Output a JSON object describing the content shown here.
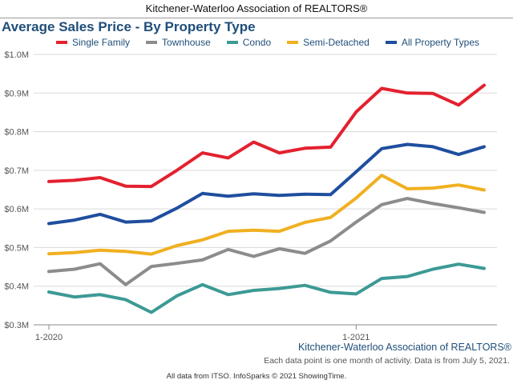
{
  "header": {
    "banner": "Kitchener-Waterloo Association of REALTORS®"
  },
  "chart_data": {
    "type": "line",
    "title": "Average Sales Price - By Property Type",
    "xlabel": "",
    "ylabel": "",
    "x": [
      "2020-01",
      "2020-02",
      "2020-03",
      "2020-04",
      "2020-05",
      "2020-06",
      "2020-07",
      "2020-08",
      "2020-09",
      "2020-10",
      "2020-11",
      "2020-12",
      "2021-01",
      "2021-02",
      "2021-03",
      "2021-04",
      "2021-05",
      "2021-06"
    ],
    "x_tick_labels": [
      {
        "x": "2020-01",
        "label": "1-2020"
      },
      {
        "x": "2021-01",
        "label": "1-2021"
      }
    ],
    "y_ticks": [
      {
        "value": 0.3,
        "label": "$0.3M"
      },
      {
        "value": 0.4,
        "label": "$0.4M"
      },
      {
        "value": 0.5,
        "label": "$0.5M"
      },
      {
        "value": 0.6,
        "label": "$0.6M"
      },
      {
        "value": 0.7,
        "label": "$0.7M"
      },
      {
        "value": 0.8,
        "label": "$0.8M"
      },
      {
        "value": 0.9,
        "label": "$0.9M"
      },
      {
        "value": 1.0,
        "label": "$1.0M"
      }
    ],
    "ylim": [
      0.3,
      1.0
    ],
    "grid": "horizontal",
    "legend_position": "top",
    "series": [
      {
        "name": "Single Family",
        "color": "#e3212f",
        "values": [
          0.671,
          0.674,
          0.681,
          0.659,
          0.658,
          0.7,
          0.745,
          0.732,
          0.773,
          0.745,
          0.757,
          0.76,
          0.851,
          0.912,
          0.9,
          0.899,
          0.869,
          0.92
        ]
      },
      {
        "name": "Townhouse",
        "color": "#8c8c8c",
        "values": [
          0.438,
          0.444,
          0.458,
          0.404,
          0.451,
          0.459,
          0.468,
          0.495,
          0.477,
          0.497,
          0.485,
          0.517,
          0.566,
          0.611,
          0.627,
          0.614,
          0.603,
          0.591
        ]
      },
      {
        "name": "Condo",
        "color": "#3c9a94",
        "values": [
          0.385,
          0.372,
          0.378,
          0.365,
          0.332,
          0.375,
          0.404,
          0.378,
          0.389,
          0.394,
          0.402,
          0.384,
          0.38,
          0.42,
          0.425,
          0.444,
          0.457,
          0.446
        ]
      },
      {
        "name": "Semi-Detached",
        "color": "#f0b020",
        "values": [
          0.484,
          0.487,
          0.493,
          0.49,
          0.483,
          0.505,
          0.52,
          0.542,
          0.545,
          0.542,
          0.565,
          0.578,
          0.628,
          0.687,
          0.652,
          0.654,
          0.662,
          0.649
        ]
      },
      {
        "name": "All Property Types",
        "color": "#1f4e9e",
        "values": [
          0.562,
          0.571,
          0.586,
          0.566,
          0.569,
          0.602,
          0.64,
          0.633,
          0.639,
          0.635,
          0.638,
          0.637,
          0.696,
          0.756,
          0.767,
          0.761,
          0.741,
          0.761
        ]
      }
    ]
  },
  "footer": {
    "brand": "Kitchener-Waterloo Association of REALTORS®",
    "note": "Each data point is one month of activity. Data is from July 5, 2021.",
    "source": "All data from ITSO. InfoSparks © 2021 ShowingTime."
  }
}
